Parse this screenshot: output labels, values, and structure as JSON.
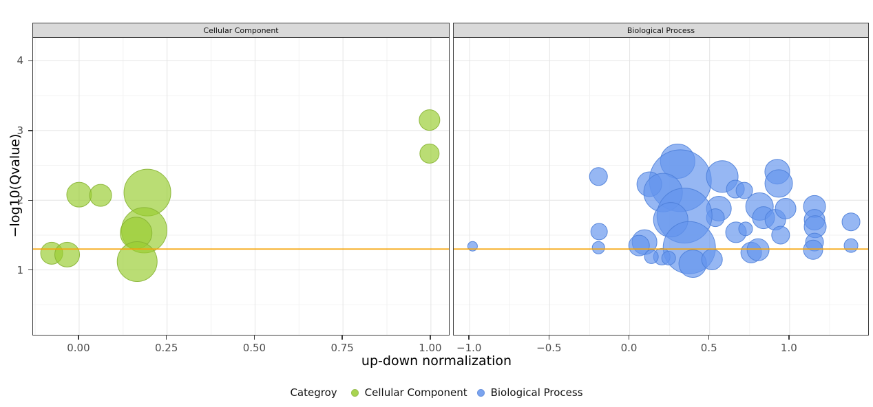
{
  "chart_data": {
    "type": "scatter",
    "title": "",
    "xlabel": "up-down normalization",
    "ylabel": "−log10(Qvalue)",
    "grid": "on",
    "legend_position": "bottom",
    "ylim": [
      0.06,
      4.33
    ],
    "yticks": [
      1,
      2,
      3,
      4
    ],
    "ytick_labels": [
      "1",
      "2",
      "3",
      "4"
    ],
    "yticks_minor": [
      0.5,
      1.5,
      2.5,
      3.5
    ],
    "threshold_line": {
      "y": 1.3,
      "color": "#F5A40A"
    },
    "panels": [
      {
        "label": "Cellular Component",
        "color": "#9ACD32",
        "stroke": "#86B332",
        "xlim": [
          -0.131,
          1.055
        ],
        "xticks": [
          0,
          0.25,
          0.5,
          0.75,
          1.0
        ],
        "xtick_labels": [
          "0.00",
          "0.25",
          "0.50",
          "0.75",
          "1.00"
        ],
        "xticks_minor": [
          -0.125,
          0.125,
          0.375,
          0.625,
          0.875
        ],
        "points": [
          {
            "x": -0.078,
            "y": 1.24,
            "r": 16
          },
          {
            "x": -0.034,
            "y": 1.22,
            "r": 18
          },
          {
            "x": 0.0,
            "y": 2.08,
            "r": 18
          },
          {
            "x": 0.061,
            "y": 2.07,
            "r": 16
          },
          {
            "x": 0.194,
            "y": 2.11,
            "r": 34
          },
          {
            "x": 0.185,
            "y": 1.57,
            "r": 33
          },
          {
            "x": 0.162,
            "y": 1.53,
            "r": 23
          },
          {
            "x": 0.165,
            "y": 1.12,
            "r": 29
          },
          {
            "x": 0.996,
            "y": 3.15,
            "r": 15
          },
          {
            "x": 0.996,
            "y": 2.67,
            "r": 14
          }
        ]
      },
      {
        "label": "Biological Process",
        "color": "#6495ED",
        "stroke": "#4D7ED8",
        "xlim": [
          -1.1,
          1.5
        ],
        "xticks": [
          -1.0,
          -0.5,
          0.0,
          0.5,
          1.0
        ],
        "xtick_labels": [
          "−1.0",
          "−0.5",
          "0.0",
          "0.5",
          "1.0"
        ],
        "xticks_minor": [
          -0.75,
          -0.25,
          0.25,
          0.75,
          1.25
        ],
        "points": [
          {
            "x": -0.982,
            "y": 1.34,
            "r": 7
          },
          {
            "x": -0.195,
            "y": 2.34,
            "r": 13
          },
          {
            "x": -0.191,
            "y": 1.55,
            "r": 12
          },
          {
            "x": -0.195,
            "y": 1.32,
            "r": 9
          },
          {
            "x": 0.3,
            "y": 2.56,
            "r": 25
          },
          {
            "x": 0.317,
            "y": 2.28,
            "r": 45
          },
          {
            "x": 0.123,
            "y": 2.23,
            "r": 18
          },
          {
            "x": 0.209,
            "y": 2.11,
            "r": 28
          },
          {
            "x": 0.579,
            "y": 2.34,
            "r": 23
          },
          {
            "x": 0.661,
            "y": 2.16,
            "r": 13
          },
          {
            "x": 0.717,
            "y": 2.14,
            "r": 12
          },
          {
            "x": 0.558,
            "y": 1.88,
            "r": 18
          },
          {
            "x": 0.536,
            "y": 1.75,
            "r": 13
          },
          {
            "x": 0.343,
            "y": 1.78,
            "r": 40
          },
          {
            "x": 0.257,
            "y": 1.72,
            "r": 25
          },
          {
            "x": 0.665,
            "y": 1.54,
            "r": 15
          },
          {
            "x": 0.725,
            "y": 1.59,
            "r": 10
          },
          {
            "x": 0.093,
            "y": 1.4,
            "r": 18
          },
          {
            "x": 0.059,
            "y": 1.35,
            "r": 15
          },
          {
            "x": 0.373,
            "y": 1.32,
            "r": 38
          },
          {
            "x": 0.201,
            "y": 1.19,
            "r": 12
          },
          {
            "x": 0.136,
            "y": 1.19,
            "r": 10
          },
          {
            "x": 0.244,
            "y": 1.17,
            "r": 10
          },
          {
            "x": 0.394,
            "y": 1.09,
            "r": 20
          },
          {
            "x": 0.515,
            "y": 1.15,
            "r": 15
          },
          {
            "x": 0.76,
            "y": 1.25,
            "r": 15
          },
          {
            "x": 0.923,
            "y": 2.41,
            "r": 18
          },
          {
            "x": 0.932,
            "y": 2.24,
            "r": 20
          },
          {
            "x": 0.812,
            "y": 1.91,
            "r": 20
          },
          {
            "x": 0.837,
            "y": 1.75,
            "r": 16
          },
          {
            "x": 0.911,
            "y": 1.72,
            "r": 15
          },
          {
            "x": 0.975,
            "y": 1.88,
            "r": 15
          },
          {
            "x": 0.944,
            "y": 1.5,
            "r": 13
          },
          {
            "x": 0.803,
            "y": 1.29,
            "r": 16
          },
          {
            "x": 1.156,
            "y": 1.91,
            "r": 16
          },
          {
            "x": 1.156,
            "y": 1.72,
            "r": 15
          },
          {
            "x": 1.16,
            "y": 1.62,
            "r": 16
          },
          {
            "x": 1.156,
            "y": 1.4,
            "r": 13
          },
          {
            "x": 1.147,
            "y": 1.29,
            "r": 14
          },
          {
            "x": 1.384,
            "y": 1.69,
            "r": 13
          },
          {
            "x": 1.384,
            "y": 1.35,
            "r": 10
          }
        ]
      }
    ],
    "legend": {
      "title": "Categroy",
      "items": [
        {
          "label": "Cellular Component",
          "color": "#9ACD32",
          "stroke": "#86B332"
        },
        {
          "label": "Biological Process",
          "color": "#6495ED",
          "stroke": "#4D7ED8"
        }
      ]
    },
    "style": {
      "grid_major": "#E4E4E4",
      "grid_minor": "#F2F2F2",
      "fill_opacity": 0.68,
      "stroke_opacity": 0.9
    }
  }
}
